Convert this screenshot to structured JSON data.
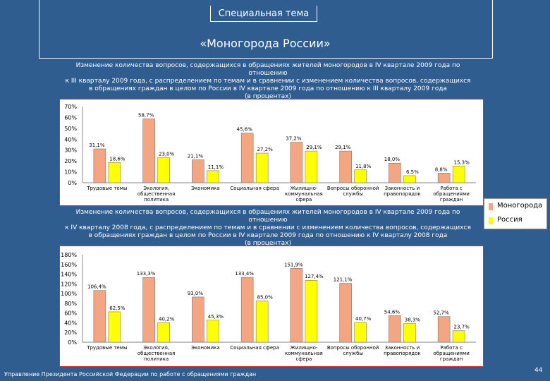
{
  "header": {
    "tab": "Специальная тема",
    "title": "«Моногорода России»"
  },
  "colors": {
    "mono": "#f4a582",
    "russia": "#ffff00",
    "panel": "#ffffff",
    "axis": "#000000"
  },
  "legend": [
    {
      "label": "Моногорода",
      "color": "#f4a582"
    },
    {
      "label": "Россия",
      "color": "#ffff00"
    }
  ],
  "chart_data": [
    {
      "type": "bar",
      "title": "Изменение количества вопросов, содержащихся в обращениях жителей моногородов в IV квартале 2009 года по отношению\nк III кварталу 2009 года, с распределением по темам и в сравнении с изменением количества вопросов, содержащихся\nв обращениях граждан в целом по России в IV квартале 2009 года по отношению к III кварталу 2009 года\n(в процентах)",
      "ylim": [
        0,
        70
      ],
      "yticks": [
        {
          "value": 0,
          "label": "0%"
        },
        {
          "value": 10,
          "label": "10%"
        },
        {
          "value": 20,
          "label": "20%"
        },
        {
          "value": 30,
          "label": "30%"
        },
        {
          "value": 40,
          "label": "40%"
        },
        {
          "value": 50,
          "label": "50%"
        },
        {
          "value": 60,
          "label": "60%"
        },
        {
          "value": 70,
          "label": "70%"
        }
      ],
      "categories": [
        [
          "Трудовые темы"
        ],
        [
          "Экология,",
          "общественная",
          "политика"
        ],
        [
          "Экономика"
        ],
        [
          "Социальная сфера"
        ],
        [
          "Жилищно-",
          "коммунальная",
          "сфера"
        ],
        [
          "Вопросы оборонной",
          "службы"
        ],
        [
          "Законность и",
          "правопорядок"
        ],
        [
          "Работа с",
          "обращениями",
          "граждан"
        ]
      ],
      "series": [
        {
          "name": "Моногорода",
          "values": [
            31.1,
            58.7,
            21.1,
            45.6,
            37.2,
            29.1,
            18.0,
            8.8
          ],
          "labels": [
            "31,1%",
            "58,7%",
            "21,1%",
            "45,6%",
            "37,2%",
            "29,1%",
            "18,0%",
            "8,8%"
          ]
        },
        {
          "name": "Россия",
          "values": [
            18.6,
            23.0,
            11.1,
            27.2,
            29.1,
            11.8,
            6.5,
            15.3
          ],
          "labels": [
            "18,6%",
            "23,0%",
            "11,1%",
            "27,2%",
            "29,1%",
            "11,8%",
            "6,5%",
            "15,3%"
          ]
        }
      ]
    },
    {
      "type": "bar",
      "title": "Изменение количества вопросов, содержащихся в обращениях жителей моногородов в IV квартале 2009 года по отношению\nк IV кварталу 2008 года, с распределением по темам и в сравнении с изменением количества вопросов, содержащихся\nв обращениях граждан в целом по России в IV квартале 2009 года по отношению к IV кварталу 2008 года\n(в процентах)",
      "ylim": [
        0,
        180
      ],
      "yticks": [
        {
          "value": 0,
          "label": "0%"
        },
        {
          "value": 20,
          "label": "20%"
        },
        {
          "value": 40,
          "label": "40%"
        },
        {
          "value": 60,
          "label": "60%"
        },
        {
          "value": 80,
          "label": "80%"
        },
        {
          "value": 100,
          "label": "100%"
        },
        {
          "value": 120,
          "label": "120%"
        },
        {
          "value": 140,
          "label": "140%"
        },
        {
          "value": 160,
          "label": "160%"
        },
        {
          "value": 180,
          "label": "180%"
        }
      ],
      "categories": [
        [
          "Трудовые темы"
        ],
        [
          "Экология,",
          "общественная",
          "политика"
        ],
        [
          "Экономика"
        ],
        [
          "Социальная сфера"
        ],
        [
          "Жилищно-",
          "коммунальная",
          "сфера"
        ],
        [
          "Вопросы оборонной",
          "службы"
        ],
        [
          "Законность и",
          "правопорядок"
        ],
        [
          "Работа с",
          "обращениями",
          "граждан"
        ]
      ],
      "series": [
        {
          "name": "Моногорода",
          "values": [
            106.4,
            133.3,
            93.0,
            133.4,
            151.9,
            121.1,
            54.6,
            52.7
          ],
          "labels": [
            "106,4%",
            "133,3%",
            "93,0%",
            "133,4%",
            "151,9%",
            "121,1%",
            "54,6%",
            "52,7%"
          ]
        },
        {
          "name": "Россия",
          "values": [
            62.5,
            40.2,
            45.3,
            85.0,
            127.4,
            40.7,
            38.3,
            23.7
          ],
          "labels": [
            "62,5%",
            "40,2%",
            "45,3%",
            "85,0%",
            "127,4%",
            "40,7%",
            "38,3%",
            "23,7%"
          ]
        }
      ]
    }
  ],
  "footer": "Управление Президента Российской Федерации по работе с обращениями граждан",
  "page_number": "44"
}
